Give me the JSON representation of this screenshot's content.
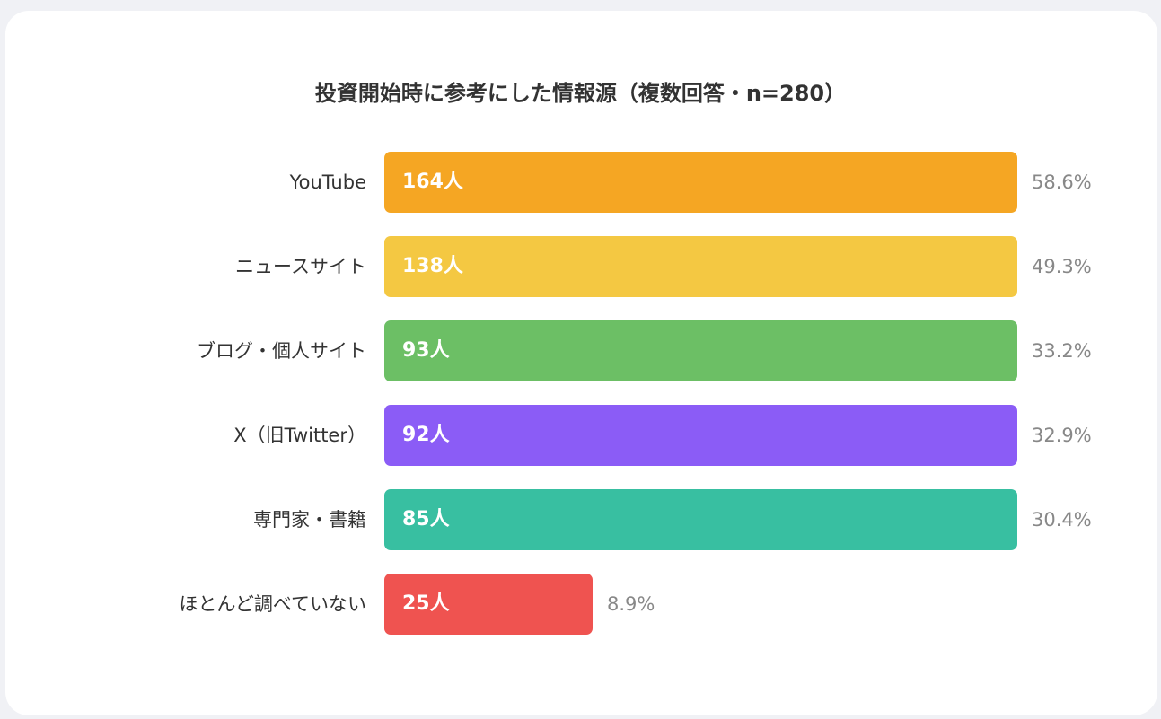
{
  "chart_data": {
    "type": "bar",
    "orientation": "horizontal",
    "title": "投資開始時に参考にした情報源（複数回答・n=280）",
    "categories": [
      "YouTube",
      "ニュースサイト",
      "ブログ・個人サイト",
      "X（旧Twitter）",
      "専門家・書籍",
      "ほとんど調べていない"
    ],
    "count_labels": [
      "164人",
      "138人",
      "93人",
      "92人",
      "85人",
      "25人"
    ],
    "values": [
      164,
      138,
      93,
      92,
      85,
      25
    ],
    "percent_labels": [
      "58.6%",
      "49.3%",
      "33.2%",
      "32.9%",
      "30.4%",
      "8.9%"
    ],
    "percents": [
      58.6,
      49.3,
      33.2,
      32.9,
      30.4,
      8.9
    ],
    "colors": [
      "#f5a623",
      "#f4c842",
      "#6cbf65",
      "#8b5cf6",
      "#38bfa1",
      "#ef5350"
    ],
    "grid": false,
    "legend": "none"
  }
}
